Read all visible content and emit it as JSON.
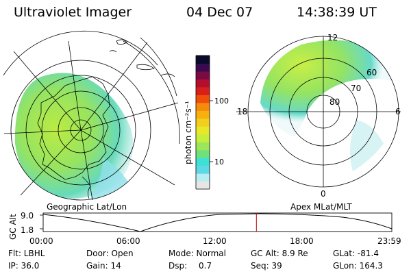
{
  "header": {
    "instrument": "Ultraviolet Imager",
    "date": "04 Dec 07",
    "time": "14:38:39 UT"
  },
  "colorbar": {
    "unit_label": "photon cm⁻²s⁻¹",
    "ticks": [
      "100",
      "10"
    ],
    "colors": [
      "#e6e6e6",
      "#b8eef2",
      "#5fd8e6",
      "#3ee0d6",
      "#6fe07a",
      "#9be65a",
      "#c6ee3c",
      "#e8e82a",
      "#f2cf1e",
      "#f7b010",
      "#f58b0c",
      "#ef4f0a",
      "#d8201a",
      "#b20f2e",
      "#7a0a44",
      "#3a0a50",
      "#0a0a2a"
    ],
    "log_range": [
      0.4,
      2.85
    ]
  },
  "panels": {
    "geo_label": "Geographic Lat/Lon",
    "apex_label": "Apex MLat/MLT",
    "apex_lat_labels": [
      "80",
      "70",
      "60"
    ],
    "apex_mlt_labels": [
      "12",
      "18",
      "6",
      "0"
    ]
  },
  "altitude_plot": {
    "ylabel": "GC Alt",
    "yticks": [
      "9.0",
      "1.8"
    ],
    "xticks": [
      "00:00",
      "06:00",
      "12:00",
      "18:00",
      "23:59"
    ],
    "current_time_fraction": 0.6115,
    "marker_color": "#c00000"
  },
  "status": {
    "filter": "Flt: LBHL",
    "door": "Door: Open",
    "mode": "Mode: Normal",
    "gc_alt": "GC Alt: 8.9 Re",
    "glat": "GLat: -81.4",
    "ip": "IP: 36.0",
    "gain": "Gain: 14",
    "dsp_label": "Dsp:",
    "dsp_value": "0.7",
    "seq": "Seq: 39",
    "glon": "GLon: 164.3"
  }
}
